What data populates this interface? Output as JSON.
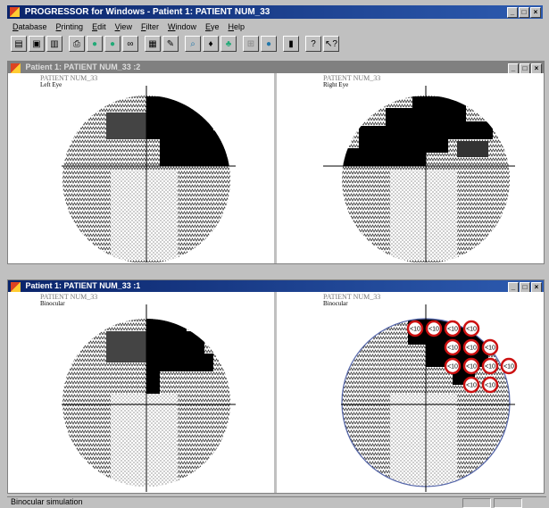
{
  "app": {
    "title": "PROGRESSOR for Windows - Patient 1: PATIENT NUM_33"
  },
  "menu": [
    "Database",
    "Printing",
    "Edit",
    "View",
    "Filter",
    "Window",
    "Eye",
    "Help"
  ],
  "toolbar_icons": [
    "open-icon",
    "print-preview-icon",
    "save-icon",
    "printer-icon",
    "left-eye-icon",
    "right-eye-icon",
    "binoculars-icon",
    "grid-icon",
    "edit-icon",
    "zoom-icon",
    "find-icon",
    "tree-icon",
    "chart-icon",
    "circle-icon",
    "trash-icon",
    "help-icon",
    "context-help-icon"
  ],
  "window2": {
    "title": "Patient 1: PATIENT NUM_33          :2",
    "left": {
      "patient": "PATIENT NUM_33",
      "eye": "Left Eye"
    },
    "right": {
      "patient": "PATIENT NUM_33",
      "eye": "Right Eye"
    }
  },
  "window1": {
    "title": "Patient 1: PATIENT NUM_33          :1",
    "left": {
      "patient": "PATIENT NUM_33",
      "eye": "Binocular"
    },
    "right": {
      "patient": "PATIENT NUM_33",
      "eye": "Binocular"
    },
    "markers": [
      "<10",
      "<10",
      "<10",
      "<10",
      "<10",
      "<10",
      "<10",
      "<10",
      "<10",
      "<10",
      "<10",
      "<10",
      "<10"
    ]
  },
  "status": {
    "text": "Binocular simulation"
  },
  "colors": {
    "defect": "#000000",
    "marker": "#cc1111",
    "ring": "#5566aa"
  }
}
